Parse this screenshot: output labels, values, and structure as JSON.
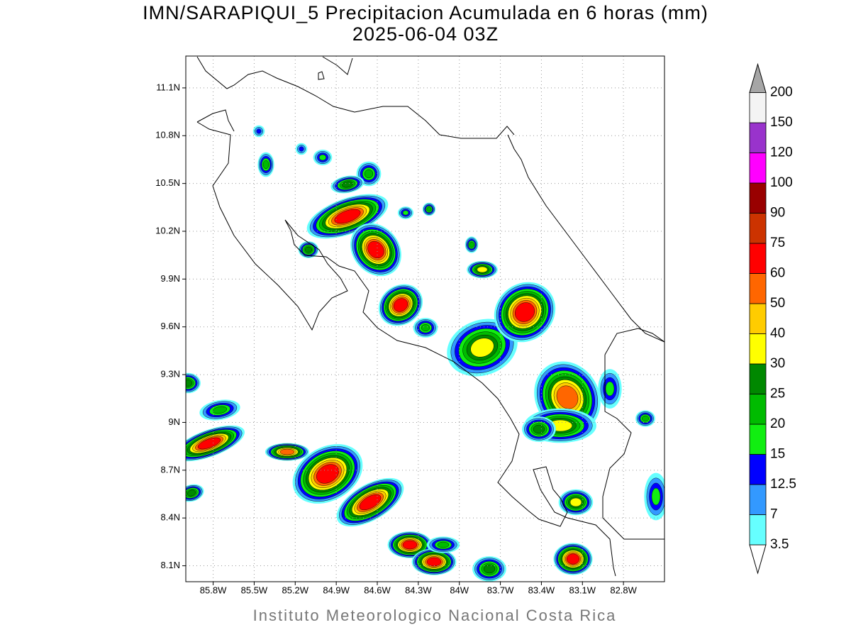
{
  "header": {
    "title": "IMN/SARAPIQUI_5 Precipitacion Acumulada en 6 horas (mm)",
    "subtitle": "2025-06-04 03Z"
  },
  "map": {
    "lonlim": [
      -86.0,
      -82.5
    ],
    "latlim": [
      8.0,
      11.3
    ],
    "grid": true,
    "lon_ticks": [
      {
        "value": -85.8,
        "label": "85.8W"
      },
      {
        "value": -85.5,
        "label": "85.5W"
      },
      {
        "value": -85.2,
        "label": "85.2W"
      },
      {
        "value": -84.9,
        "label": "84.9W"
      },
      {
        "value": -84.6,
        "label": "84.6W"
      },
      {
        "value": -84.3,
        "label": "84.3W"
      },
      {
        "value": -84.0,
        "label": "84W"
      },
      {
        "value": -83.7,
        "label": "83.7W"
      },
      {
        "value": -83.4,
        "label": "83.4W"
      },
      {
        "value": -83.1,
        "label": "83.1W"
      },
      {
        "value": -82.8,
        "label": "82.8W"
      }
    ],
    "lat_ticks": [
      {
        "value": 8.1,
        "label": "8.1N"
      },
      {
        "value": 8.4,
        "label": "8.4N"
      },
      {
        "value": 8.7,
        "label": "8.7N"
      },
      {
        "value": 9.0,
        "label": "9N"
      },
      {
        "value": 9.3,
        "label": "9.3N"
      },
      {
        "value": 9.6,
        "label": "9.6N"
      },
      {
        "value": 9.9,
        "label": "9.9N"
      },
      {
        "value": 10.2,
        "label": "10.2N"
      },
      {
        "value": 10.5,
        "label": "10.5N"
      },
      {
        "value": 10.8,
        "label": "10.8N"
      },
      {
        "value": 11.1,
        "label": "11.1N"
      }
    ]
  },
  "colorbar": {
    "levels": [
      3.5,
      7,
      12.5,
      15,
      20,
      25,
      30,
      40,
      50,
      60,
      75,
      90,
      100,
      120,
      150,
      200
    ],
    "colors": [
      "#66ffff",
      "#3399ff",
      "#0000ff",
      "#11ee11",
      "#00bb00",
      "#008800",
      "#ffff00",
      "#ffcc00",
      "#ff6600",
      "#ff0000",
      "#cc3300",
      "#990000",
      "#ff00ff",
      "#9933cc",
      "#f4f4f4"
    ],
    "under_color": "#ffffff",
    "over_color": "#a6a6a6"
  },
  "footer": "Instituto Meteorologico Nacional Costa Rica"
}
